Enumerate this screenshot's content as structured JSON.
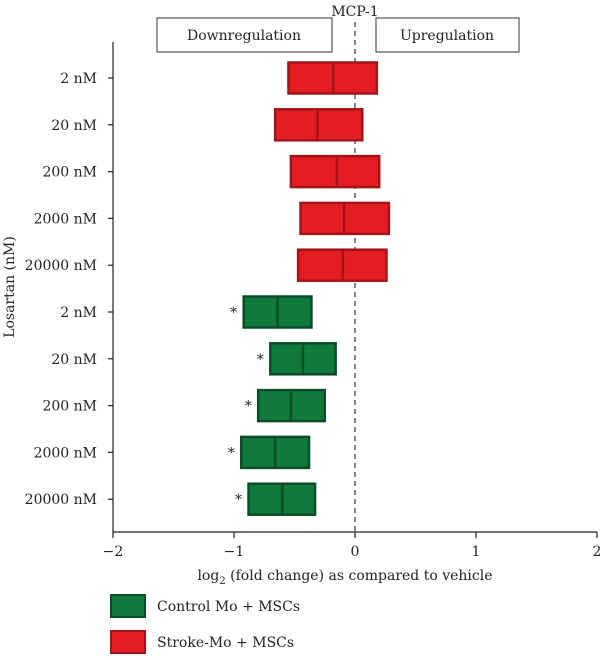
{
  "chart_data": {
    "type": "floating-bar",
    "title": "MCP-1",
    "xlabel_main": "log",
    "xlabel_sub": "2",
    "xlabel_rest": " (fold change) as compared to vehicle",
    "ylabel": "Losartan (nM)",
    "xlim": [
      -2,
      2
    ],
    "x_ticks": [
      -2,
      -1,
      0,
      1,
      2
    ],
    "x_tick_labels": [
      "−2",
      "−1",
      "0",
      "1",
      "2"
    ],
    "direction_labels": {
      "left": "Downregulation",
      "right": "Upregulation"
    },
    "significance_mark": "*",
    "colors": {
      "Stroke-Mo + MSCs": "#e41d23",
      "Control Mo + MSCs": "#0f7a3c"
    },
    "stroke_colors": {
      "Stroke-Mo + MSCs": "#a31318",
      "Control Mo + MSCs": "#0a4d26"
    },
    "rows": [
      {
        "label": "2 nM",
        "group": "Stroke-Mo + MSCs",
        "low": -0.55,
        "mid": -0.18,
        "high": 0.18,
        "sig": false
      },
      {
        "label": "20 nM",
        "group": "Stroke-Mo + MSCs",
        "low": -0.66,
        "mid": -0.31,
        "high": 0.06,
        "sig": false
      },
      {
        "label": "200 nM",
        "group": "Stroke-Mo + MSCs",
        "low": -0.53,
        "mid": -0.15,
        "high": 0.2,
        "sig": false
      },
      {
        "label": "2000 nM",
        "group": "Stroke-Mo + MSCs",
        "low": -0.45,
        "mid": -0.09,
        "high": 0.28,
        "sig": false
      },
      {
        "label": "20000 nM",
        "group": "Stroke-Mo + MSCs",
        "low": -0.47,
        "mid": -0.1,
        "high": 0.26,
        "sig": false
      },
      {
        "label": "2 nM",
        "group": "Control Mo + MSCs",
        "low": -0.92,
        "mid": -0.64,
        "high": -0.36,
        "sig": true
      },
      {
        "label": "20 nM",
        "group": "Control Mo + MSCs",
        "low": -0.7,
        "mid": -0.43,
        "high": -0.16,
        "sig": true
      },
      {
        "label": "200 nM",
        "group": "Control Mo + MSCs",
        "low": -0.8,
        "mid": -0.53,
        "high": -0.25,
        "sig": true
      },
      {
        "label": "2000 nM",
        "group": "Control Mo + MSCs",
        "low": -0.94,
        "mid": -0.66,
        "high": -0.38,
        "sig": true
      },
      {
        "label": "20000 nM",
        "group": "Control Mo + MSCs",
        "low": -0.88,
        "mid": -0.6,
        "high": -0.33,
        "sig": true
      }
    ],
    "legend": [
      {
        "name": "Control Mo + MSCs",
        "color": "#0f7a3c"
      },
      {
        "name": "Stroke-Mo + MSCs",
        "color": "#e41d23"
      }
    ],
    "legend_position": "bottom-left"
  }
}
